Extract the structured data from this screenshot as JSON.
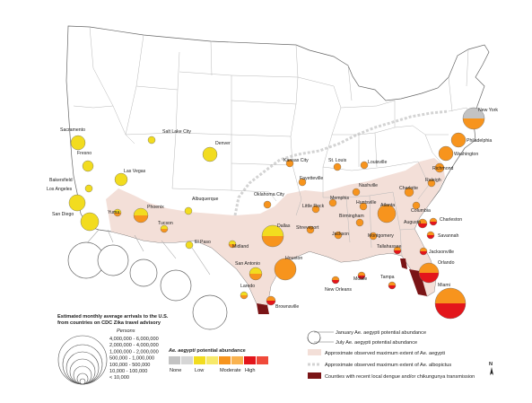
{
  "cities": [
    {
      "name": "New York",
      "level": "none",
      "bottom": "moderate"
    },
    {
      "name": "Philadelphia",
      "level": "moderate",
      "bottom": "moderate"
    },
    {
      "name": "Washington",
      "level": "moderate",
      "bottom": "moderate"
    },
    {
      "name": "Richmond",
      "level": "moderate",
      "bottom": "moderate"
    },
    {
      "name": "Raleigh",
      "level": "moderate",
      "bottom": "moderate"
    },
    {
      "name": "Charlotte",
      "level": "moderate",
      "bottom": "moderate"
    },
    {
      "name": "Columbia",
      "level": "moderate",
      "bottom": "moderate"
    },
    {
      "name": "Atlanta",
      "level": "moderate",
      "bottom": "moderate"
    },
    {
      "name": "Augusta",
      "level": "moderate",
      "bottom": "high"
    },
    {
      "name": "Charleston",
      "level": "moderate",
      "bottom": "high"
    },
    {
      "name": "Savannah",
      "level": "moderate",
      "bottom": "high"
    },
    {
      "name": "Jacksonville",
      "level": "moderate",
      "bottom": "high"
    },
    {
      "name": "Orlando",
      "level": "moderate",
      "bottom": "high"
    },
    {
      "name": "Tampa",
      "level": "moderate",
      "bottom": "high"
    },
    {
      "name": "Miami",
      "level": "moderate",
      "bottom": "high"
    },
    {
      "name": "Tallahassee",
      "level": "moderate",
      "bottom": "high"
    },
    {
      "name": "Mobile",
      "level": "moderate",
      "bottom": "high"
    },
    {
      "name": "New Orleans",
      "level": "moderate",
      "bottom": "high"
    },
    {
      "name": "Montgomery",
      "level": "moderate",
      "bottom": "moderate"
    },
    {
      "name": "Birmingham",
      "level": "moderate",
      "bottom": "moderate"
    },
    {
      "name": "Huntsville",
      "level": "moderate",
      "bottom": "moderate"
    },
    {
      "name": "Nashville",
      "level": "moderate",
      "bottom": "moderate"
    },
    {
      "name": "Memphis",
      "level": "moderate",
      "bottom": "moderate"
    },
    {
      "name": "Jackson",
      "level": "moderate",
      "bottom": "moderate"
    },
    {
      "name": "Louisville",
      "level": "moderate",
      "bottom": "moderate"
    },
    {
      "name": "St. Louis",
      "level": "moderate",
      "bottom": "moderate"
    },
    {
      "name": "Kansas City",
      "level": "moderate",
      "bottom": "moderate"
    },
    {
      "name": "Fayetteville",
      "level": "moderate",
      "bottom": "moderate"
    },
    {
      "name": "Little Rock",
      "level": "moderate",
      "bottom": "moderate"
    },
    {
      "name": "Oklahoma City",
      "level": "moderate",
      "bottom": "moderate"
    },
    {
      "name": "Shreveport",
      "level": "moderate",
      "bottom": "moderate"
    },
    {
      "name": "Dallas",
      "level": "low",
      "bottom": "moderate"
    },
    {
      "name": "Houston",
      "level": "moderate",
      "bottom": "moderate"
    },
    {
      "name": "San Antonio",
      "level": "low",
      "bottom": "moderate"
    },
    {
      "name": "Laredo",
      "level": "low",
      "bottom": "moderate"
    },
    {
      "name": "Brownsville",
      "level": "moderate",
      "bottom": "high"
    },
    {
      "name": "Midland",
      "level": "low",
      "bottom": "moderate"
    },
    {
      "name": "El Paso",
      "level": "low",
      "bottom": "low"
    },
    {
      "name": "Albuquerque",
      "level": "low",
      "bottom": "low"
    },
    {
      "name": "Denver",
      "level": "low",
      "bottom": "low"
    },
    {
      "name": "Salt Lake City",
      "level": "low",
      "bottom": "low"
    },
    {
      "name": "Las Vegas",
      "level": "low",
      "bottom": "low"
    },
    {
      "name": "Phoenix",
      "level": "low",
      "bottom": "moderate"
    },
    {
      "name": "Tucson",
      "level": "low",
      "bottom": "moderate"
    },
    {
      "name": "Yuma",
      "level": "low",
      "bottom": "moderate"
    },
    {
      "name": "San Diego",
      "level": "low",
      "bottom": "low"
    },
    {
      "name": "Los Angeles",
      "level": "low",
      "bottom": "low"
    },
    {
      "name": "Bakersfield",
      "level": "low",
      "bottom": "low"
    },
    {
      "name": "Fresno",
      "level": "low",
      "bottom": "low"
    },
    {
      "name": "Sacramento",
      "level": "low",
      "bottom": "low"
    }
  ],
  "colors": {
    "none": "#c3c3c3",
    "low": "#f2dc1f",
    "moderate": "#f7941d",
    "high": "#e3161b",
    "aegypti_extent": "#f3dfd8",
    "albopictus_line": "#d3d3d3",
    "dengue": "#7a1416"
  },
  "size_legend": {
    "title_line1": "Estimated monthly average arrivals to the U.S.",
    "title_line2": "from countries on CDC Zika travel advisory",
    "persons_label": "Persons",
    "classes": [
      "4,000,000 - 6,000,000",
      "2,000,000 - 4,000,000",
      "1,000,000 - 2,000,000",
      "500,000 - 1,000,000",
      "100,000 - 500,000",
      "10,000 - 100,000",
      "< 10,000"
    ]
  },
  "abundance_legend": {
    "title_prefix": "Ae. aegypti",
    "title_suffix": " potential abundance",
    "labels": [
      "None",
      "Low",
      "Moderate",
      "High"
    ]
  },
  "map_legend": {
    "january": "January Ae. aegypti potential abundance",
    "july": "July Ae. aegypti potential abundance",
    "aegypti_extent": "Approximate observed maximum extent of Ae. aegypti",
    "albopictus_extent": "Approximate observed maximum extent of Ae. albopictus",
    "dengue": "Counties with recent local dengue and/or chikungunya transmission"
  },
  "north_arrow": "N"
}
